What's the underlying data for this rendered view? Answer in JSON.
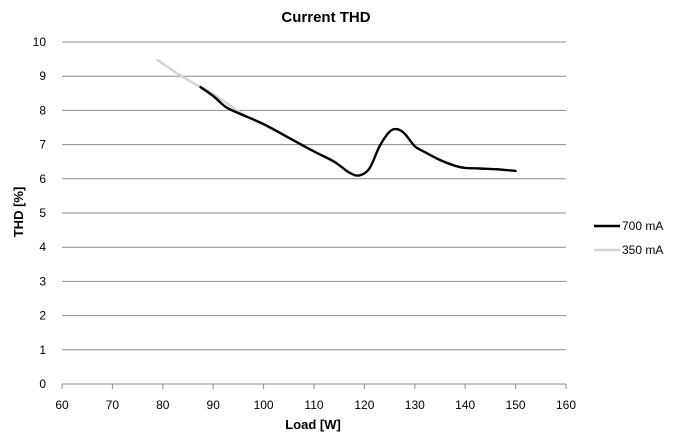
{
  "chart_data": {
    "type": "line",
    "title": "Current THD",
    "xlabel": "Load [W]",
    "ylabel": "THD [%]",
    "xlim": [
      60,
      160
    ],
    "ylim": [
      0,
      10
    ],
    "x_ticks": [
      "60",
      "70",
      "80",
      "90",
      "100",
      "110",
      "120",
      "130",
      "140",
      "150",
      "160"
    ],
    "y_ticks": [
      "0",
      "1",
      "2",
      "3",
      "4",
      "5",
      "6",
      "7",
      "8",
      "9",
      "10"
    ],
    "grid": "horizontal",
    "legend_position": "right",
    "series": [
      {
        "name": "700 mA",
        "color": "#000000",
        "x": [
          87.5,
          90,
          92.5,
          95,
          100,
          105,
          110,
          114,
          117,
          119,
          121,
          123,
          125,
          126.5,
          128,
          130,
          132,
          135,
          138,
          140,
          143,
          146,
          150
        ],
        "y": [
          8.68,
          8.42,
          8.1,
          7.92,
          7.6,
          7.2,
          6.8,
          6.5,
          6.18,
          6.1,
          6.3,
          6.95,
          7.38,
          7.45,
          7.32,
          6.95,
          6.78,
          6.55,
          6.38,
          6.32,
          6.3,
          6.28,
          6.23
        ]
      },
      {
        "name": "350 mA",
        "color": "#d3d3d3",
        "x": [
          79,
          82.5,
          86,
          90,
          95,
          100,
          104
        ],
        "y": [
          9.47,
          9.12,
          8.8,
          8.48,
          7.98,
          7.58,
          7.28
        ]
      }
    ]
  }
}
